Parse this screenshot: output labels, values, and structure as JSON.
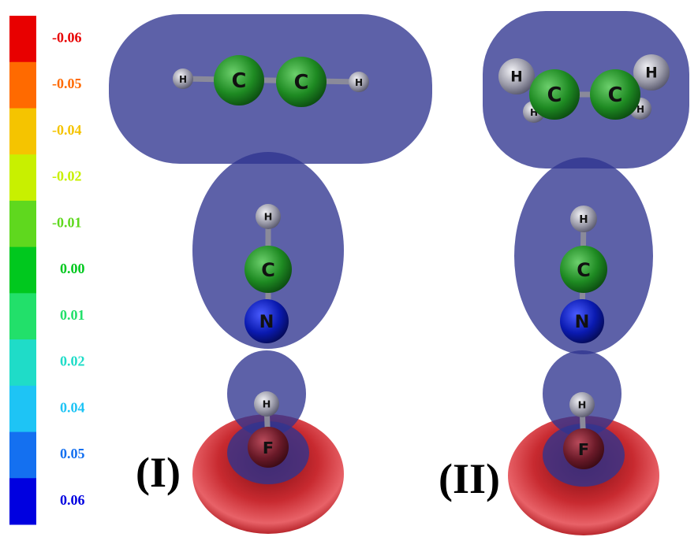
{
  "color_scale": [
    {
      "label": "-0.06",
      "color": "#e80000"
    },
    {
      "label": "-0.05",
      "color": "#ff6a00"
    },
    {
      "label": "-0.04",
      "color": "#f5c400"
    },
    {
      "label": "-0.02",
      "color": "#c8f000"
    },
    {
      "label": "-0.01",
      "color": "#5fd81e"
    },
    {
      "label": "0.00",
      "color": "#00c81e"
    },
    {
      "label": "0.01",
      "color": "#22e06a"
    },
    {
      "label": "0.02",
      "color": "#1fdcc8"
    },
    {
      "label": "0.04",
      "color": "#1ec4f5"
    },
    {
      "label": "0.05",
      "color": "#1470f0"
    },
    {
      "label": "0.06",
      "color": "#0000e0"
    }
  ],
  "panels": [
    {
      "label": "(I)",
      "atoms": [
        "H",
        "C",
        "C",
        "H",
        "H",
        "C",
        "N",
        "H",
        "F"
      ]
    },
    {
      "label": "(II)",
      "atoms": [
        "H",
        "H",
        "C",
        "C",
        "H",
        "H",
        "H",
        "C",
        "N",
        "H",
        "F"
      ]
    }
  ]
}
